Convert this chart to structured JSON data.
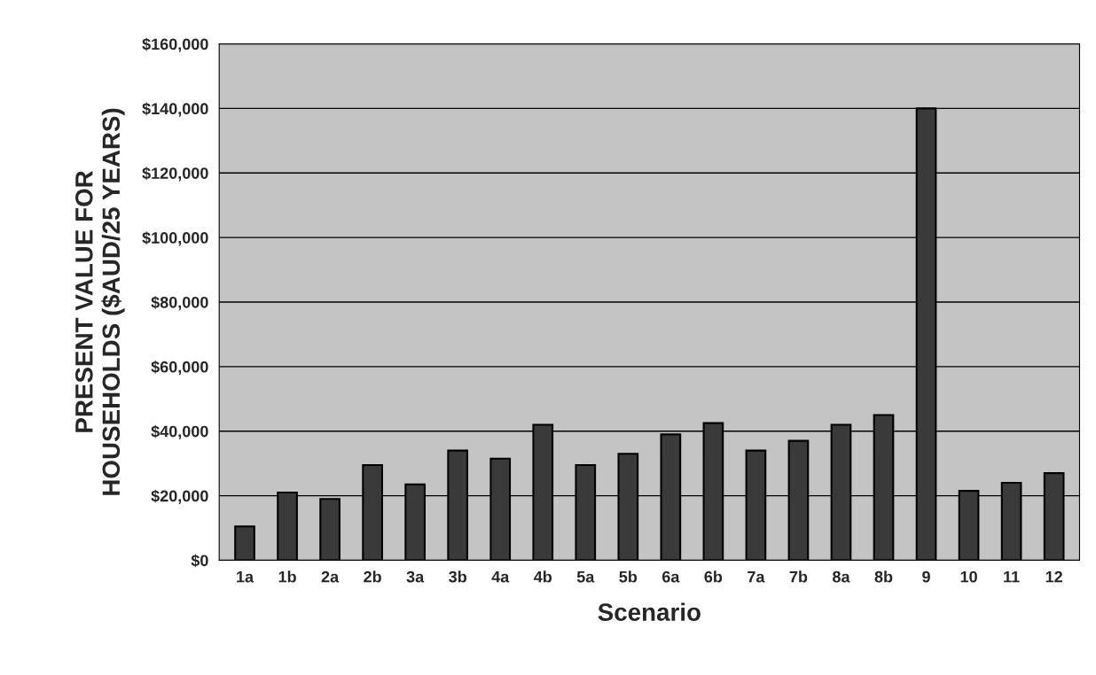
{
  "chart_data": {
    "type": "bar",
    "xlabel": "Scenario",
    "ylabel": "PRESENT VALUE FOR\nHOUSEHOLDS ($AUD/25 YEARS)",
    "categories": [
      "1a",
      "1b",
      "2a",
      "2b",
      "3a",
      "3b",
      "4a",
      "4b",
      "5a",
      "5b",
      "6a",
      "6b",
      "7a",
      "7b",
      "8a",
      "8b",
      "9",
      "10",
      "11",
      "12"
    ],
    "values": [
      10500,
      21000,
      19000,
      29500,
      23500,
      34000,
      31500,
      42000,
      29500,
      33000,
      39000,
      42500,
      34000,
      37000,
      42000,
      45000,
      140000,
      21500,
      24000,
      27000
    ],
    "color": "#3a3a3a",
    "ylim": [
      0,
      160000
    ],
    "yticks": [
      {
        "value": 0,
        "label": "$0"
      },
      {
        "value": 20000,
        "label": "$20,000"
      },
      {
        "value": 40000,
        "label": "$40,000"
      },
      {
        "value": 60000,
        "label": "$60,000"
      },
      {
        "value": 80000,
        "label": "$80,000"
      },
      {
        "value": 100000,
        "label": "$100,000"
      },
      {
        "value": 120000,
        "label": "$120,000"
      },
      {
        "value": 140000,
        "label": "$140,000"
      },
      {
        "value": 160000,
        "label": "$160,000"
      }
    ],
    "grid": "y",
    "legend": false
  }
}
